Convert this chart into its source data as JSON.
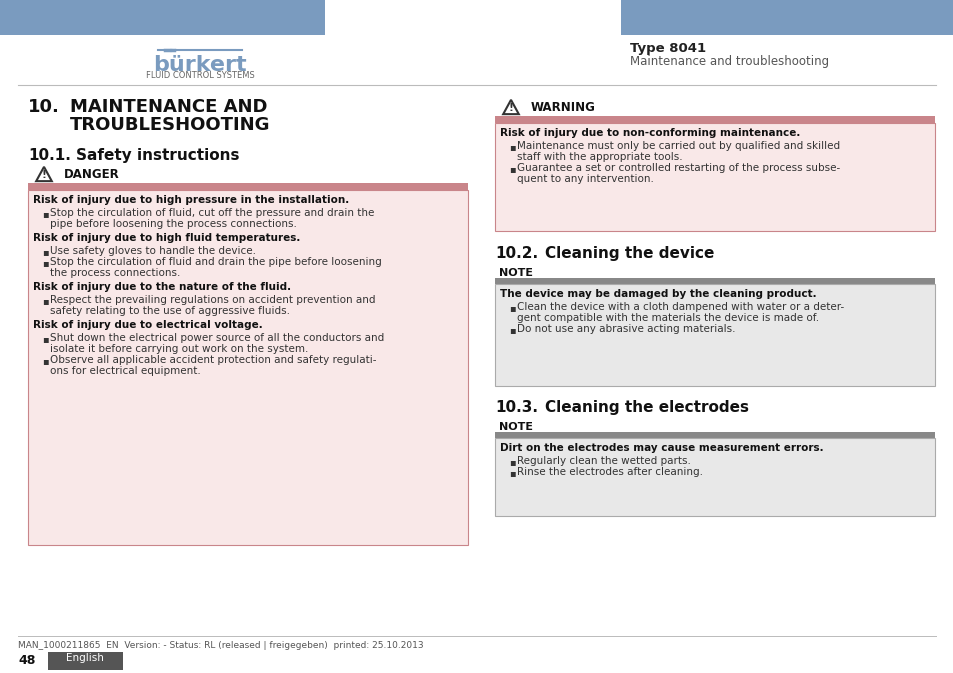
{
  "page_bg": "#ffffff",
  "header_bar_color": "#7a9bbf",
  "logo_color": "#7a9bbf",
  "logo_sub_color": "#666666",
  "type_label": "Type 8041",
  "type_sublabel": "Maintenance and troubleshooting",
  "divider_color": "#bbbbbb",
  "danger_bar_color": "#c9858a",
  "danger_box_bg": "#f9e8e8",
  "danger_box_border": "#c9858a",
  "warning_bar_color": "#c9858a",
  "warning_box_bg": "#f9e8e8",
  "warning_box_border": "#c9858a",
  "note_bar_color": "#888888",
  "note_box_bg": "#e8e8e8",
  "note_box_border": "#aaaaaa",
  "footer_lang_bg": "#555555",
  "footer_lang_color": "#ffffff",
  "footer_text": "MAN_1000211865  EN  Version: - Status: RL (released | freigegeben)  printed: 25.10.2013"
}
